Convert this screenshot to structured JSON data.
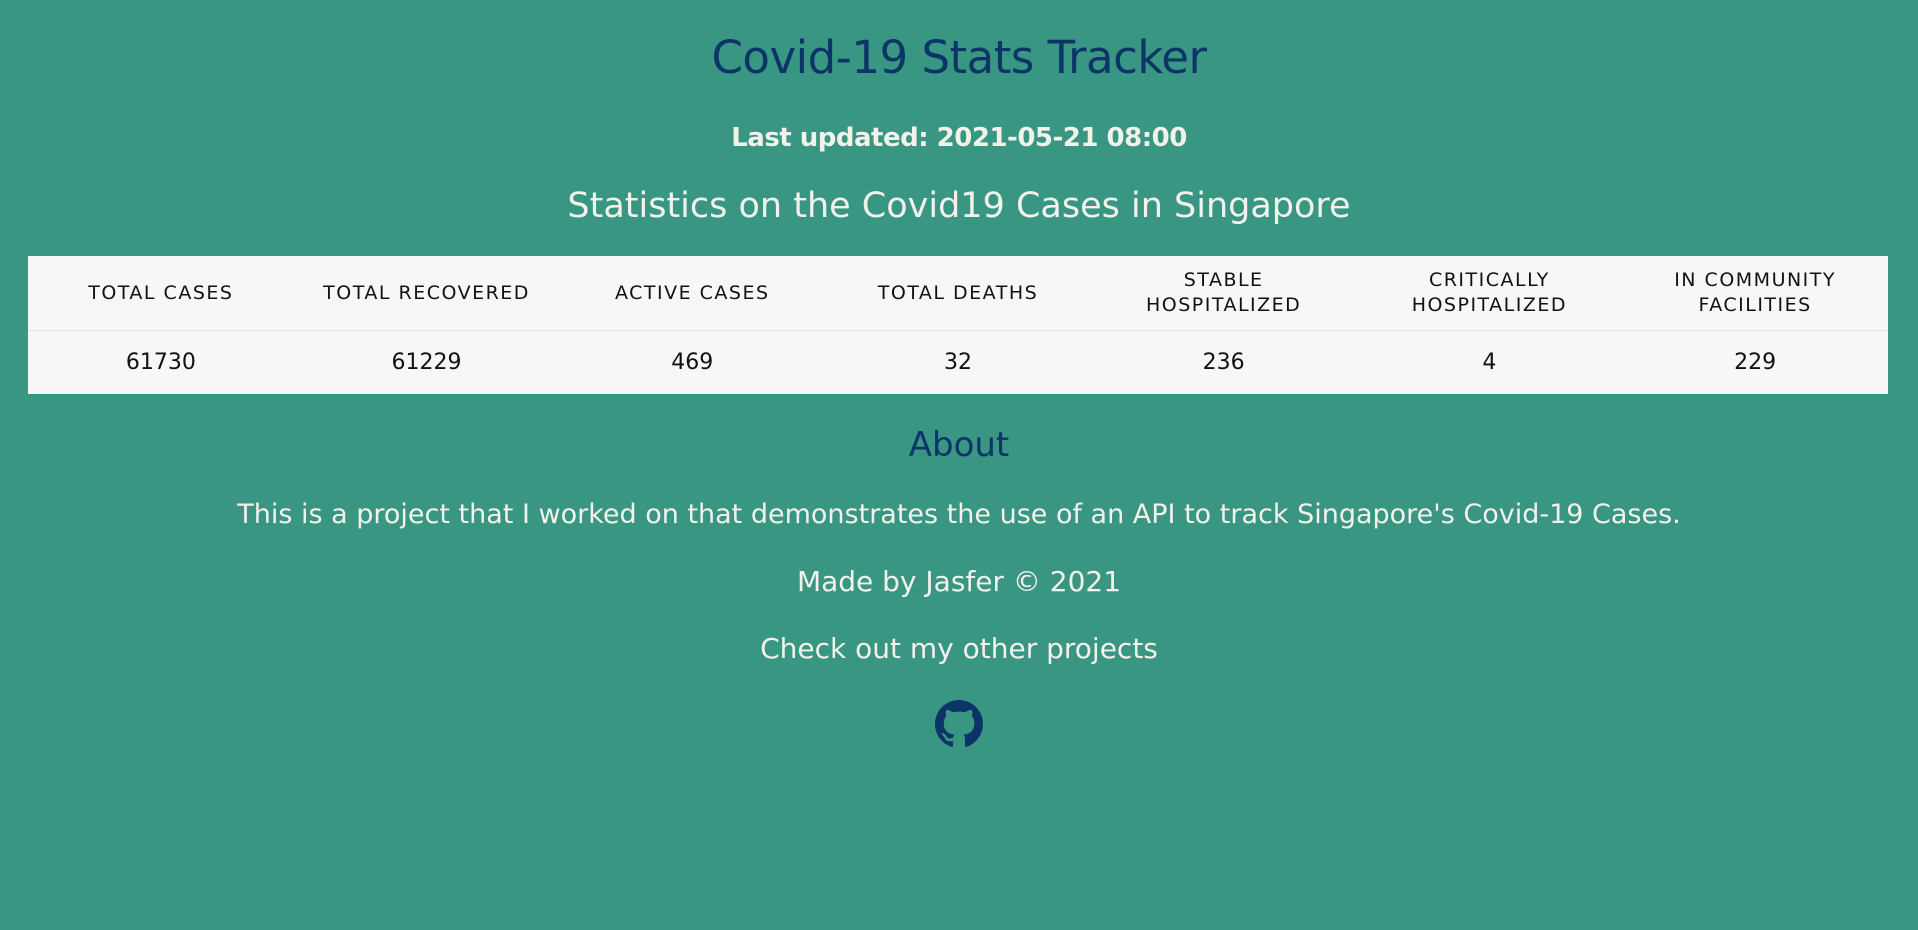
{
  "header": {
    "title": "Covid-19 Stats Tracker",
    "last_updated": "Last updated: 2021-05-21 08:00",
    "subtitle": "Statistics on the Covid19 Cases in Singapore"
  },
  "stats": {
    "headers": [
      "TOTAL CASES",
      "TOTAL RECOVERED",
      "ACTIVE CASES",
      "TOTAL DEATHS",
      "STABLE HOSPITALIZED",
      "CRITICALLY HOSPITALIZED",
      "IN COMMUNITY FACILITIES"
    ],
    "values": [
      "61730",
      "61229",
      "469",
      "32",
      "236",
      "4",
      "229"
    ]
  },
  "about": {
    "heading": "About",
    "text": "This is a project that I worked on that demonstrates the use of an API to track Singapore's Covid-19 Cases.",
    "credit": "Made by Jasfer © 2021",
    "projects_text": "Check out my other projects",
    "link_icon": "github-icon"
  },
  "colors": {
    "background": "#389683",
    "heading_blue": "#0c3466",
    "text_light": "#f2f2ea",
    "table_bg": "#f7f7f7"
  }
}
